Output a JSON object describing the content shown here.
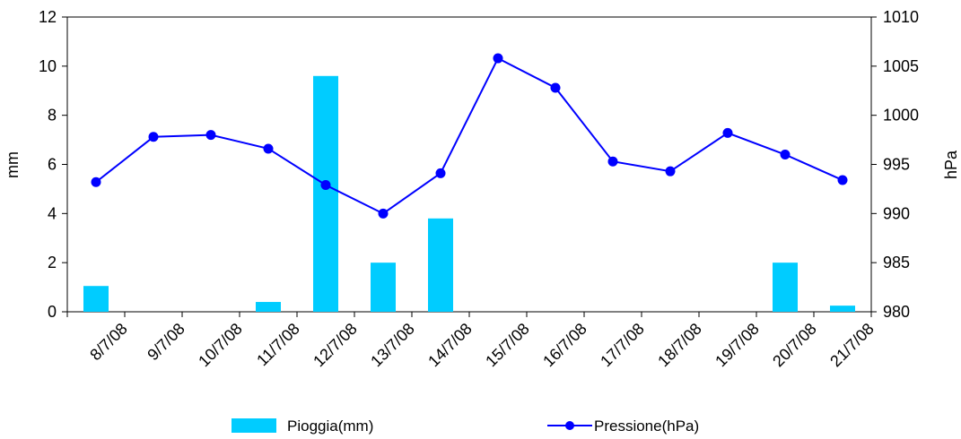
{
  "chart_data": {
    "type": "bar",
    "categories": [
      "8/7/08",
      "9/7/08",
      "10/7/08",
      "11/7/08",
      "12/7/08",
      "13/7/08",
      "14/7/08",
      "15/7/08",
      "16/7/08",
      "17/7/08",
      "18/7/08",
      "19/7/08",
      "20/7/08",
      "21/7/08"
    ],
    "series": [
      {
        "name": "Pioggia(mm)",
        "type": "bar",
        "axis": "left",
        "color": "#00CCFF",
        "values": [
          1.05,
          0,
          0,
          0.4,
          9.6,
          2.0,
          3.8,
          0,
          0,
          0,
          0,
          0,
          2.0,
          0.25
        ]
      },
      {
        "name": "Pressione(hPa)",
        "type": "line",
        "axis": "right",
        "color": "#0000FF",
        "values": [
          993.2,
          997.8,
          998.0,
          996.6,
          992.9,
          990.0,
          994.1,
          1005.8,
          1002.8,
          995.3,
          994.3,
          998.2,
          996.0,
          993.4
        ]
      }
    ],
    "y_left": {
      "label": "mm",
      "range": [
        0,
        12
      ],
      "ticks": [
        "0",
        "2",
        "4",
        "6",
        "8",
        "10",
        "12"
      ]
    },
    "y_right": {
      "label": "hPa",
      "range": [
        980,
        1010
      ],
      "ticks": [
        "980",
        "985",
        "990",
        "995",
        "1000",
        "1005",
        "1010"
      ]
    },
    "title": "",
    "xlabel": "",
    "grid": false,
    "legend_position": "bottom"
  }
}
